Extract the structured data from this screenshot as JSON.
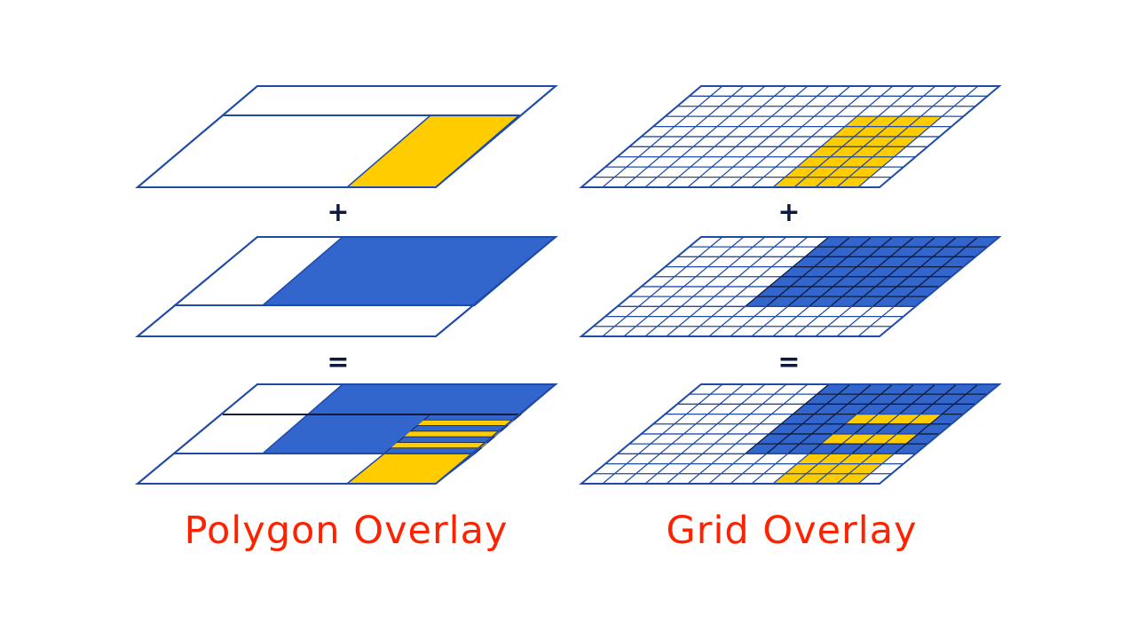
{
  "colors": {
    "background": "#ffffff",
    "outline": "#1f4aa8",
    "blue_fill": "#3366cc",
    "yellow_fill": "#ffcc00",
    "operator": "#0d1a3a",
    "caption": "#ff2200",
    "stripe_line": "#0d1a3a"
  },
  "operators": {
    "plus": "+",
    "equals": "="
  },
  "left_column": {
    "caption": "Polygon Overlay"
  },
  "right_column": {
    "caption": "Grid Overlay"
  }
}
